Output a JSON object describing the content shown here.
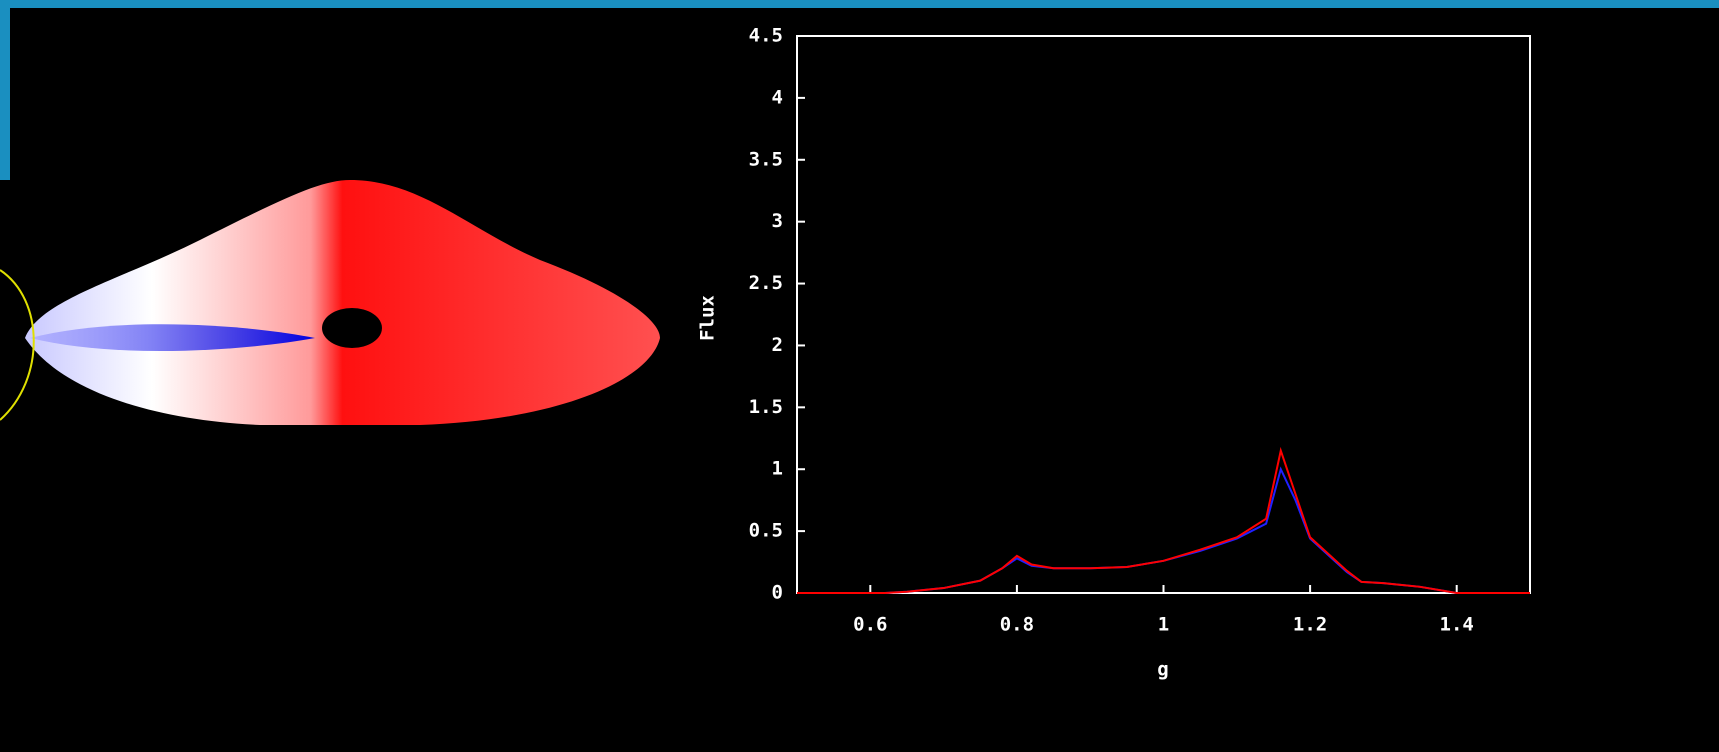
{
  "chart_data": {
    "type": "line",
    "xlabel": "g",
    "ylabel": "Flux",
    "x": [
      0.5,
      0.62,
      0.65,
      0.7,
      0.75,
      0.78,
      0.8,
      0.82,
      0.85,
      0.9,
      0.95,
      1.0,
      1.05,
      1.1,
      1.14,
      1.16,
      1.18,
      1.2,
      1.25,
      1.27,
      1.3,
      1.35,
      1.4,
      1.5
    ],
    "series": [
      {
        "name": "blue",
        "color": "#2020ff",
        "values": [
          0,
          0,
          0.01,
          0.04,
          0.1,
          0.2,
          0.28,
          0.22,
          0.2,
          0.2,
          0.21,
          0.26,
          0.34,
          0.44,
          0.56,
          1.0,
          0.75,
          0.44,
          0.17,
          0.09,
          0.08,
          0.05,
          0,
          0
        ]
      },
      {
        "name": "red",
        "color": "#ff0000",
        "values": [
          0,
          0,
          0.01,
          0.04,
          0.1,
          0.2,
          0.3,
          0.23,
          0.2,
          0.2,
          0.21,
          0.26,
          0.35,
          0.45,
          0.6,
          1.15,
          0.8,
          0.45,
          0.18,
          0.09,
          0.08,
          0.05,
          0,
          0
        ]
      }
    ],
    "xlim": [
      0.5,
      1.5
    ],
    "xticks": [
      0.6,
      0.8,
      1,
      1.2,
      1.4
    ],
    "ylim": [
      0,
      4.5
    ],
    "yticks": [
      0,
      0.5,
      1,
      1.5,
      2,
      2.5,
      3,
      3.5,
      4,
      4.5
    ]
  }
}
